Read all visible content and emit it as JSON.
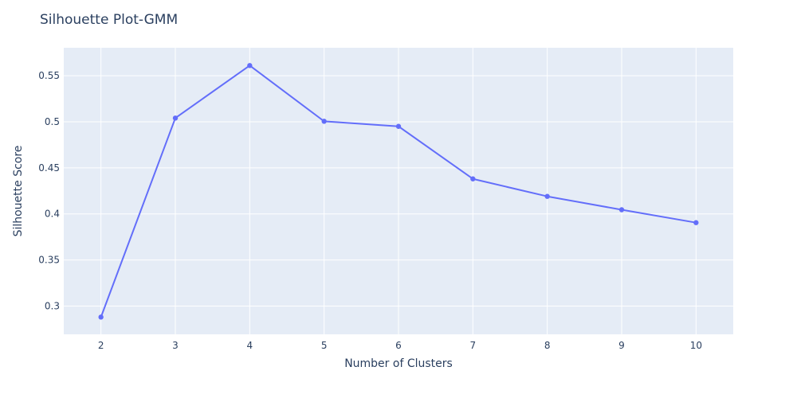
{
  "chart_data": {
    "type": "line",
    "title": "Silhouette Plot-GMM",
    "xlabel": "Number of Clusters",
    "ylabel": "Silhouette Score",
    "x": [
      2,
      3,
      4,
      5,
      6,
      7,
      8,
      9,
      10
    ],
    "series": [
      {
        "values": [
          0.288,
          0.504,
          0.561,
          0.5005,
          0.495,
          0.438,
          0.419,
          0.4045,
          0.3905
        ],
        "mode": "lines+markers"
      }
    ],
    "xlim": [
      1.5,
      10.5
    ],
    "ylim": [
      0.2693,
      0.5803
    ],
    "xticks": [
      2,
      3,
      4,
      5,
      6,
      7,
      8,
      9,
      10
    ],
    "yticks": [
      0.3,
      0.35,
      0.4,
      0.45,
      0.5,
      0.55
    ],
    "ytick_labels": [
      "0.3",
      "0.35",
      "0.4",
      "0.45",
      "0.5",
      "0.55"
    ],
    "grid": true,
    "legend": "none",
    "colors": {
      "plot_bg": "#e5ecf6",
      "grid": "#ffffff",
      "line": "#636efa",
      "text": "#2a3f5f"
    }
  }
}
